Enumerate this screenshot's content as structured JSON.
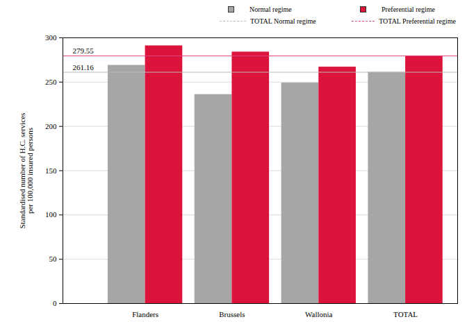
{
  "chart_data": {
    "type": "bar",
    "y_label": "Standardised number of H.C. services\nper 100,000 insured persons",
    "categories": [
      "Flanders",
      "Brussels",
      "Wallonia",
      "TOTAL"
    ],
    "series": [
      {
        "name": "Normal regime",
        "color": "#a6a6a6",
        "values": [
          269,
          236,
          249,
          261.16
        ]
      },
      {
        "name": "Preferential regime",
        "color": "#dc143c",
        "values": [
          291,
          284,
          267,
          279.55
        ]
      }
    ],
    "reference_lines": [
      {
        "name": "TOTAL Normal regime",
        "value": 261.16,
        "color": "#b8b8b8",
        "line_style": "dashed"
      },
      {
        "name": "TOTAL Preferential regime",
        "value": 279.55,
        "color": "#e0457b",
        "line_style": "dashed"
      }
    ],
    "ylim": [
      0,
      300
    ],
    "yticks": [
      0,
      50,
      100,
      150,
      200,
      250,
      300
    ],
    "grid": true,
    "legend": "top right"
  }
}
